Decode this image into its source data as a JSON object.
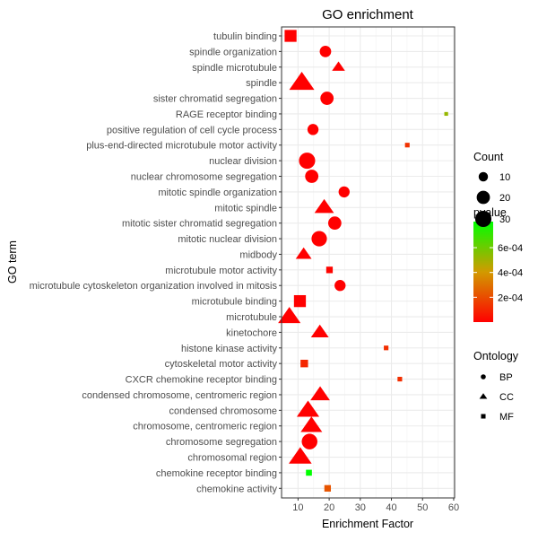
{
  "chart_data": {
    "type": "scatter",
    "title": "GO enrichment",
    "xlabel": "Enrichment Factor",
    "ylabel": "GO term",
    "xlim": [
      4.7,
      60.3
    ],
    "xticks": [
      10,
      20,
      30,
      40,
      50,
      60
    ],
    "grid": true,
    "legend_placement": "right",
    "points": [
      {
        "term": "tubulin binding",
        "x": 7.6,
        "count": 20,
        "pvalue": 1e-06,
        "ontology": "MF"
      },
      {
        "term": "spindle organization",
        "x": 18.8,
        "count": 15,
        "pvalue": 1e-06,
        "ontology": "BP"
      },
      {
        "term": "spindle microtubule",
        "x": 23.0,
        "count": 8,
        "pvalue": 1e-06,
        "ontology": "CC"
      },
      {
        "term": "spindle",
        "x": 11.2,
        "count": 30,
        "pvalue": 1e-06,
        "ontology": "CC"
      },
      {
        "term": "sister chromatid segregation",
        "x": 19.3,
        "count": 20,
        "pvalue": 1e-06,
        "ontology": "BP"
      },
      {
        "term": "RAGE receptor binding",
        "x": 57.6,
        "count": 2,
        "pvalue": 0.00052,
        "ontology": "MF"
      },
      {
        "term": "positive regulation of cell cycle process",
        "x": 14.8,
        "count": 14,
        "pvalue": 1e-06,
        "ontology": "BP"
      },
      {
        "term": "plus-end-directed microtubule motor activity",
        "x": 45.1,
        "count": 3,
        "pvalue": 0.00013,
        "ontology": "MF"
      },
      {
        "term": "nuclear division",
        "x": 12.9,
        "count": 30,
        "pvalue": 1e-06,
        "ontology": "BP"
      },
      {
        "term": "nuclear chromosome segregation",
        "x": 14.4,
        "count": 20,
        "pvalue": 1e-06,
        "ontology": "BP"
      },
      {
        "term": "mitotic spindle organization",
        "x": 24.8,
        "count": 14,
        "pvalue": 1e-06,
        "ontology": "BP"
      },
      {
        "term": "mitotic spindle",
        "x": 18.4,
        "count": 18,
        "pvalue": 1e-06,
        "ontology": "CC"
      },
      {
        "term": "mitotic sister chromatid segregation",
        "x": 21.8,
        "count": 20,
        "pvalue": 1e-06,
        "ontology": "BP"
      },
      {
        "term": "mitotic nuclear division",
        "x": 16.8,
        "count": 27,
        "pvalue": 1e-06,
        "ontology": "BP"
      },
      {
        "term": "midbody",
        "x": 11.8,
        "count": 12,
        "pvalue": 1e-06,
        "ontology": "CC"
      },
      {
        "term": "microtubule motor activity",
        "x": 20.1,
        "count": 6,
        "pvalue": 1e-05,
        "ontology": "MF"
      },
      {
        "term": "microtubule cytoskeleton organization involved in mitosis",
        "x": 23.5,
        "count": 14,
        "pvalue": 1e-06,
        "ontology": "BP"
      },
      {
        "term": "microtubule binding",
        "x": 10.6,
        "count": 20,
        "pvalue": 1e-06,
        "ontology": "MF"
      },
      {
        "term": "microtubule",
        "x": 7.2,
        "count": 24,
        "pvalue": 1e-06,
        "ontology": "CC"
      },
      {
        "term": "kinetochore",
        "x": 17.0,
        "count": 15,
        "pvalue": 1e-06,
        "ontology": "CC"
      },
      {
        "term": "histone kinase activity",
        "x": 38.3,
        "count": 3,
        "pvalue": 0.00012,
        "ontology": "MF"
      },
      {
        "term": "cytoskeletal motor activity",
        "x": 12.0,
        "count": 8,
        "pvalue": 0.0001,
        "ontology": "MF"
      },
      {
        "term": "CXCR chemokine receptor binding",
        "x": 42.7,
        "count": 3,
        "pvalue": 0.00012,
        "ontology": "MF"
      },
      {
        "term": "condensed chromosome, centromeric region",
        "x": 17.1,
        "count": 18,
        "pvalue": 1e-06,
        "ontology": "CC"
      },
      {
        "term": "condensed chromosome",
        "x": 13.2,
        "count": 24,
        "pvalue": 1e-06,
        "ontology": "CC"
      },
      {
        "term": "chromosome, centromeric region",
        "x": 14.3,
        "count": 22,
        "pvalue": 1e-06,
        "ontology": "CC"
      },
      {
        "term": "chromosome segregation",
        "x": 13.7,
        "count": 28,
        "pvalue": 1e-06,
        "ontology": "BP"
      },
      {
        "term": "chromosomal region",
        "x": 10.7,
        "count": 25,
        "pvalue": 1e-06,
        "ontology": "CC"
      },
      {
        "term": "chemokine receptor binding",
        "x": 13.5,
        "count": 5,
        "pvalue": 0.00081,
        "ontology": "MF"
      },
      {
        "term": "chemokine activity",
        "x": 19.5,
        "count": 6,
        "pvalue": 0.00022,
        "ontology": "MF"
      }
    ],
    "legends": {
      "count": {
        "title": "Count",
        "values": [
          10,
          20,
          30
        ],
        "labels": [
          "10",
          "20",
          "30"
        ]
      },
      "pvalue": {
        "title": "pvalue",
        "range": [
          0,
          0.00081
        ],
        "ticks": [
          0.0002,
          0.0004,
          0.0006
        ],
        "labels": [
          "2e-04",
          "4e-04",
          "6e-04"
        ],
        "low_color": "#ff0000",
        "high_color": "#00ff00"
      },
      "ontology": {
        "title": "Ontology",
        "items": [
          {
            "label": "BP",
            "shape": "circle"
          },
          {
            "label": "CC",
            "shape": "triangle"
          },
          {
            "label": "MF",
            "shape": "square"
          }
        ]
      }
    }
  }
}
